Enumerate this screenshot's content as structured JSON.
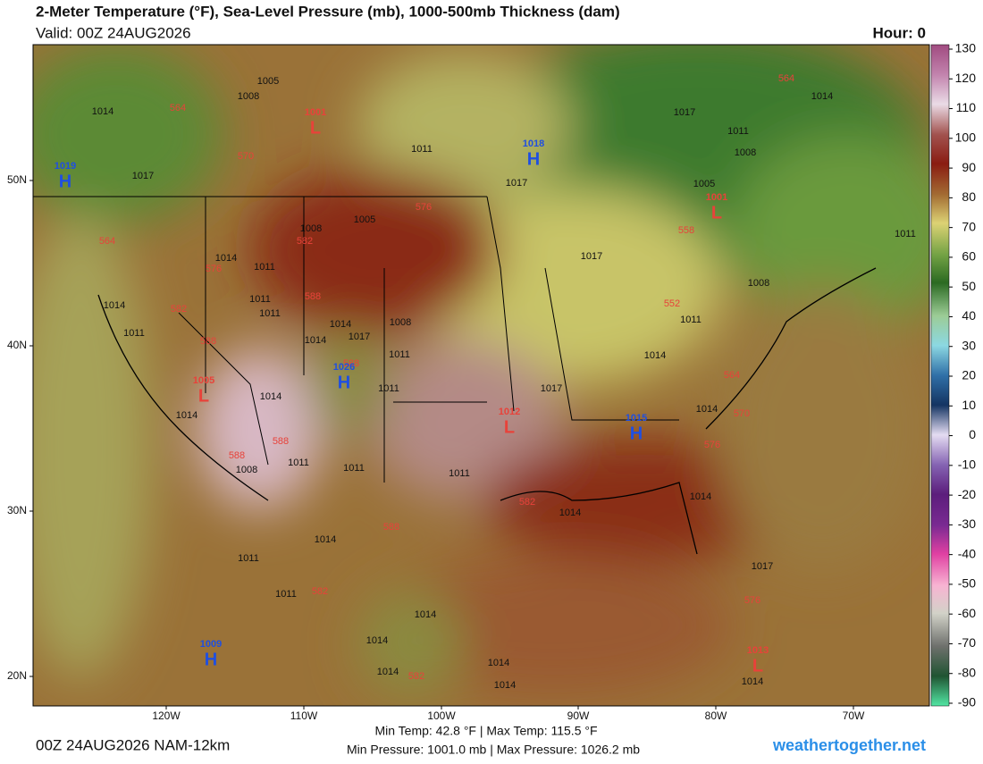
{
  "header": {
    "title": "2-Meter Temperature (°F), Sea-Level Pressure (mb), 1000-500mb Thickness (dam)",
    "valid": "Valid: 00Z 24AUG2026",
    "hour": "Hour: 0"
  },
  "colorbar": {
    "ticks": [
      130,
      120,
      110,
      100,
      90,
      80,
      70,
      60,
      50,
      40,
      30,
      20,
      10,
      0,
      -10,
      -20,
      -30,
      -40,
      -50,
      -60,
      -70,
      -80,
      -90
    ]
  },
  "axes": {
    "lat_labels": [
      "50N",
      "40N",
      "30N",
      "20N"
    ],
    "lon_labels": [
      "120W",
      "110W",
      "100W",
      "90W",
      "80W",
      "70W"
    ]
  },
  "centers": [
    {
      "type": "H",
      "value": "1019"
    },
    {
      "type": "L",
      "value": "1001"
    },
    {
      "type": "H",
      "value": "1018"
    },
    {
      "type": "L",
      "value": "1001"
    },
    {
      "type": "H",
      "value": "1026"
    },
    {
      "type": "L",
      "value": "1005"
    },
    {
      "type": "L",
      "value": "1012"
    },
    {
      "type": "H",
      "value": "1015"
    },
    {
      "type": "H",
      "value": "1009"
    },
    {
      "type": "L",
      "value": "1013"
    }
  ],
  "contours": {
    "isobars": [
      "1014",
      "1008",
      "1005",
      "1017",
      "1011",
      "1017",
      "1017",
      "1011",
      "1008",
      "1005",
      "1014",
      "1011",
      "1008",
      "1005",
      "1014",
      "1011",
      "1017",
      "1014",
      "1011",
      "1011",
      "1011",
      "1014",
      "1014",
      "1017",
      "1008",
      "1011",
      "1011",
      "1017",
      "1014",
      "1011",
      "1014",
      "1014",
      "1014",
      "1008",
      "1011",
      "1011",
      "1011",
      "1014",
      "1014",
      "1014",
      "1011",
      "1011",
      "1014",
      "1014",
      "1014",
      "1014",
      "1014",
      "1017",
      "1014",
      "1008"
    ],
    "thickness": [
      "564",
      "570",
      "564",
      "576",
      "558",
      "564",
      "576",
      "582",
      "588",
      "582",
      "588",
      "588",
      "564",
      "570",
      "576",
      "588",
      "588",
      "582",
      "588",
      "582",
      "576",
      "582",
      "552"
    ]
  },
  "footer": {
    "run": "00Z 24AUG2026 NAM-12km",
    "temp_range": "Min Temp: 42.8 °F | Max Temp: 115.5 °F",
    "pressure_range": "Min Pressure: 1001.0 mb | Max Pressure: 1026.2 mb",
    "site": "weathertogether.net"
  }
}
